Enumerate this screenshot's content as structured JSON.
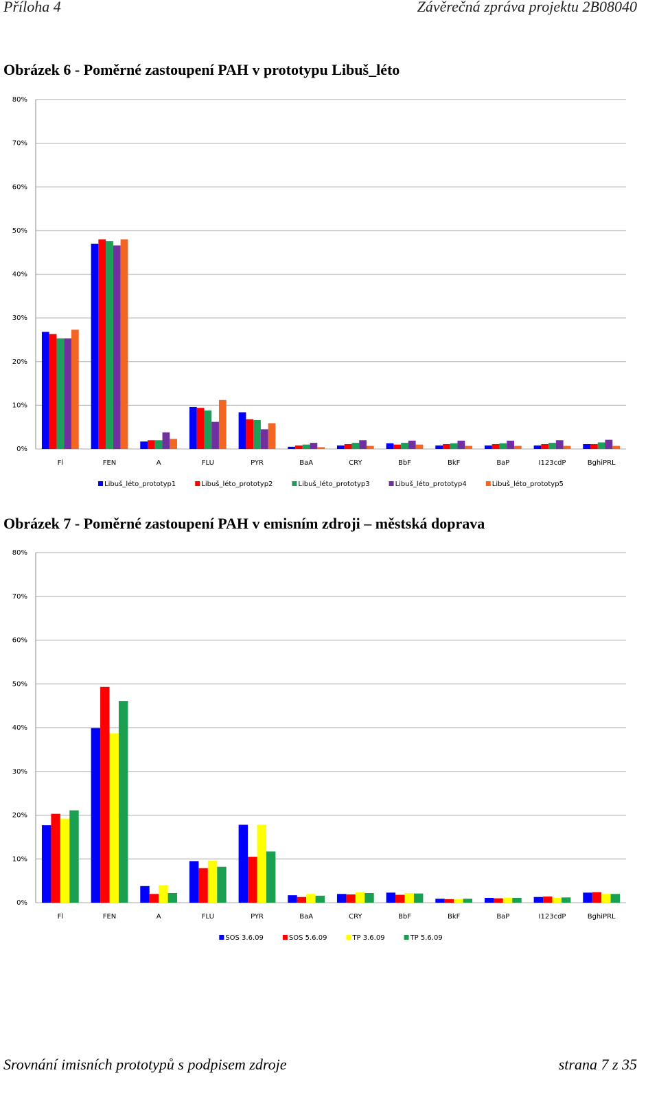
{
  "header": {
    "left": "Příloha 4",
    "right": "Závěrečná zpráva projektu 2B08040"
  },
  "footer": {
    "left": "Srovnání imisních prototypů s podpisem zdroje",
    "right": "strana 7 z 35"
  },
  "chart_data": [
    {
      "type": "bar",
      "title": "Obrázek 6 - Poměrné zastoupení PAH v prototypu Libuš_léto",
      "categories": [
        "Fl",
        "FEN",
        "A",
        "FLU",
        "PYR",
        "BaA",
        "CRY",
        "BbF",
        "BkF",
        "BaP",
        "I123cdP",
        "BghiPRL"
      ],
      "series": [
        {
          "name": "Libuš_léto_prototyp1",
          "color": "#0000ff",
          "values": [
            26.8,
            47,
            1.7,
            9.6,
            8.4,
            0.5,
            0.8,
            1.3,
            0.8,
            0.8,
            0.8,
            1.1
          ]
        },
        {
          "name": "Libuš_léto_prototyp2",
          "color": "#ff0000",
          "values": [
            26.3,
            48,
            2.0,
            9.4,
            6.8,
            0.8,
            1.1,
            1.0,
            1.1,
            1.1,
            1.1,
            1.1
          ]
        },
        {
          "name": "Libuš_léto_prototyp3",
          "color": "#1e9e5a",
          "values": [
            25.3,
            47.6,
            2.0,
            8.8,
            6.6,
            1.0,
            1.4,
            1.4,
            1.3,
            1.3,
            1.4,
            1.5
          ]
        },
        {
          "name": "Libuš_léto_prototyp4",
          "color": "#7030a0",
          "values": [
            25.3,
            46.6,
            3.8,
            6.2,
            4.5,
            1.4,
            2.0,
            1.9,
            1.9,
            1.9,
            2.0,
            2.1
          ]
        },
        {
          "name": "Libuš_léto_prototyp5",
          "color": "#f26522",
          "values": [
            27.3,
            48,
            2.3,
            11.2,
            5.9,
            0.4,
            0.7,
            1.0,
            0.7,
            0.7,
            0.7,
            0.7
          ]
        }
      ],
      "ylim": [
        0,
        80
      ],
      "yticks": [
        {
          "value": 0,
          "label": "0%"
        },
        {
          "value": 10,
          "label": "10%"
        },
        {
          "value": 20,
          "label": "20%"
        },
        {
          "value": 30,
          "label": "30%"
        },
        {
          "value": 40,
          "label": "40%"
        },
        {
          "value": 50,
          "label": "50%"
        },
        {
          "value": 60,
          "label": "60%"
        },
        {
          "value": 70,
          "label": "70%"
        },
        {
          "value": 80,
          "label": "80%"
        }
      ],
      "grid": true,
      "legend": "bottom"
    },
    {
      "type": "bar",
      "title": "Obrázek 7 - Poměrné zastoupení PAH v emisním zdroji – městská doprava",
      "categories": [
        "Fl",
        "FEN",
        "A",
        "FLU",
        "PYR",
        "BaA",
        "CRY",
        "BbF",
        "BkF",
        "BaP",
        "I123cdP",
        "BghiPRL"
      ],
      "series": [
        {
          "name": "SOS 3.6.09",
          "color": "#0000ff",
          "values": [
            17.7,
            39.9,
            3.8,
            9.5,
            17.8,
            1.7,
            2.0,
            2.3,
            0.9,
            1.1,
            1.3,
            2.3
          ]
        },
        {
          "name": "SOS 5.6.09",
          "color": "#ff0000",
          "values": [
            20.3,
            49.3,
            2.0,
            7.9,
            10.5,
            1.3,
            1.9,
            1.8,
            0.8,
            1.0,
            1.4,
            2.4
          ]
        },
        {
          "name": "TP 3.6.09",
          "color": "#ffff00",
          "values": [
            19.2,
            38.7,
            4.0,
            9.6,
            17.8,
            2.0,
            2.4,
            2.2,
            0.8,
            1.1,
            1.1,
            2.0
          ]
        },
        {
          "name": "TP 5.6.09",
          "color": "#1aa050",
          "values": [
            21.1,
            46.1,
            2.2,
            8.2,
            11.7,
            1.6,
            2.2,
            2.1,
            0.9,
            1.1,
            1.2,
            2.0
          ]
        }
      ],
      "ylim": [
        0,
        80
      ],
      "yticks": [
        {
          "value": 0,
          "label": "0%"
        },
        {
          "value": 10,
          "label": "10%"
        },
        {
          "value": 20,
          "label": "20%"
        },
        {
          "value": 30,
          "label": "30%"
        },
        {
          "value": 40,
          "label": "40%"
        },
        {
          "value": 50,
          "label": "50%"
        },
        {
          "value": 60,
          "label": "60%"
        },
        {
          "value": 70,
          "label": "70%"
        },
        {
          "value": 80,
          "label": "80%"
        }
      ],
      "grid": true,
      "legend": "bottom"
    }
  ]
}
